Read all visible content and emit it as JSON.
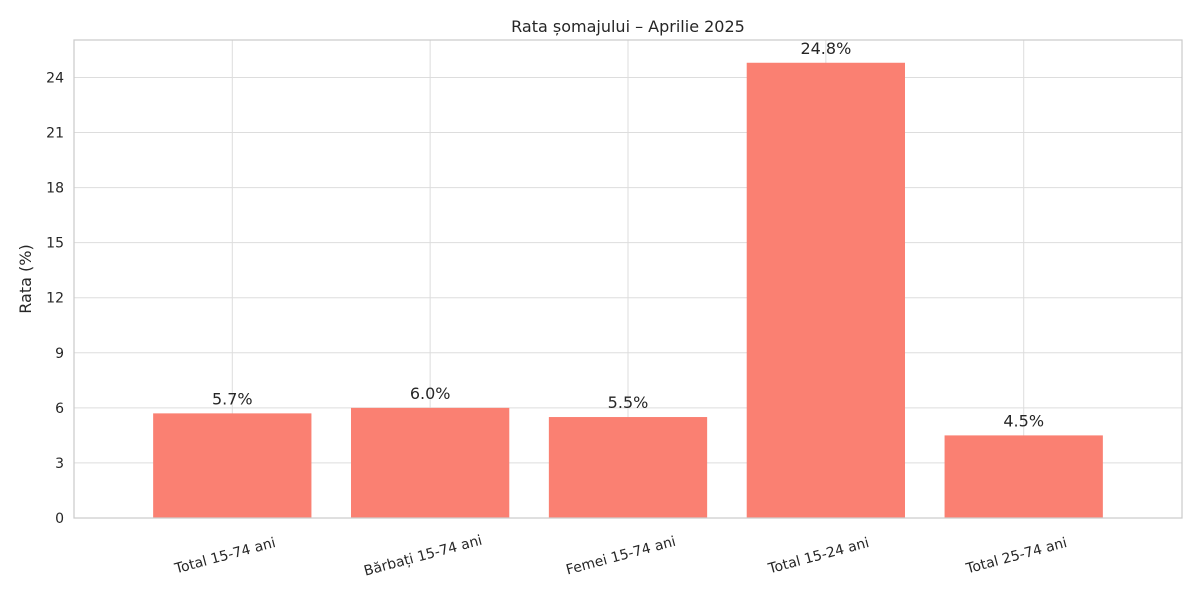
{
  "chart_data": {
    "type": "bar",
    "title": "Rata șomajului – Aprilie 2025",
    "xlabel": "",
    "ylabel": "Rata (%)",
    "categories": [
      "Total 15-74 ani",
      "Bărbați 15-74 ani",
      "Femei 15-74 ani",
      "Total 15-24 ani",
      "Total 25-74 ani"
    ],
    "values": [
      5.7,
      6.0,
      5.5,
      24.8,
      4.5
    ],
    "value_labels": [
      "5.7%",
      "6.0%",
      "5.5%",
      "24.8%",
      "4.5%"
    ],
    "ylim": [
      0,
      26.04
    ],
    "yticks": [
      0,
      3,
      6,
      9,
      12,
      15,
      18,
      21,
      24
    ],
    "ytick_labels": [
      "0",
      "3",
      "6",
      "9",
      "12",
      "15",
      "18",
      "21",
      "24"
    ],
    "bar_color": "#fa8072",
    "grid": true,
    "xtick_rotation": 15
  }
}
